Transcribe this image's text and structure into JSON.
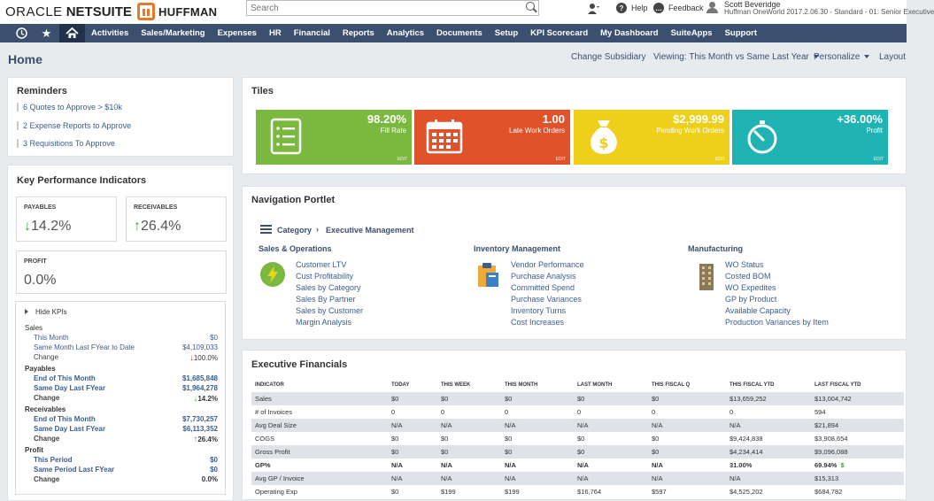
{
  "brand": {
    "oracle": "ORACLE",
    "netsuite": "NETSUITE",
    "company": "HUFFMAN"
  },
  "search": {
    "placeholder": "Search"
  },
  "topbar": {
    "help": "Help",
    "feedback": "Feedback",
    "user_name": "Scott Beveridge",
    "user_role": "Huffman OneWorld 2017.2.06.30 - Standard - 01: Senior Executive"
  },
  "nav": {
    "items": [
      "Activities",
      "Sales/Marketing",
      "Expenses",
      "HR",
      "Financial",
      "Reports",
      "Analytics",
      "Documents",
      "Setup",
      "KPI Scorecard",
      "My Dashboard",
      "SuiteApps",
      "Support"
    ]
  },
  "page": {
    "title": "Home",
    "change_subsidiary": "Change Subsidiary",
    "viewing": "Viewing: This Month vs Same Last Year",
    "personalize": "Personalize",
    "layout": "Layout"
  },
  "reminders": {
    "title": "Reminders",
    "items": [
      "6  Quotes to Approve > $10k",
      "2  Expense Reports to Approve",
      "3  Requisitions To Approve"
    ]
  },
  "kpi": {
    "title": "Key Performance Indicators",
    "payables": {
      "label": "PAYABLES",
      "value": "14.2%",
      "arrow": "↓"
    },
    "receivables": {
      "label": "RECEIVABLES",
      "value": "26.4%",
      "arrow": "↑"
    },
    "profit": {
      "label": "PROFIT",
      "value": "0.0%"
    },
    "hide": "Hide KPIs",
    "rows": [
      {
        "label": "Sales",
        "value": "",
        "style": "head-plain"
      },
      {
        "label": "This Month",
        "value": "$0",
        "style": "sub"
      },
      {
        "label": "Same Month Last FYear to Date",
        "value": "$4,109,033",
        "style": "sub"
      },
      {
        "label": "Change",
        "value": "100.0%",
        "arrow": "↓",
        "arrow_color": "#d23a2a",
        "style": "sub-plain"
      },
      {
        "label": "Payables",
        "value": "",
        "style": "head"
      },
      {
        "label": "End of This Month",
        "value": "$1,685,848",
        "style": "subbold"
      },
      {
        "label": "Same Day Last FYear",
        "value": "$1,964,278",
        "style": "subbold"
      },
      {
        "label": "Change",
        "value": "14.2%",
        "arrow": "↓",
        "arrow_color": "#4a9a3b",
        "style": "subbold-plain"
      },
      {
        "label": "Receivables",
        "value": "",
        "style": "head"
      },
      {
        "label": "End of This Month",
        "value": "$7,730,257",
        "style": "subbold"
      },
      {
        "label": "Same Day Last FYear",
        "value": "$6,113,352",
        "style": "subbold"
      },
      {
        "label": "Change",
        "value": "26.4%",
        "arrow": "↑",
        "arrow_color": "#4a9a3b",
        "style": "subbold-plain"
      },
      {
        "label": "Profit",
        "value": "",
        "style": "head"
      },
      {
        "label": "This Period",
        "value": "$0",
        "style": "subbold"
      },
      {
        "label": "Same Period Last FYear",
        "value": "$0",
        "style": "subbold"
      },
      {
        "label": "Change",
        "value": "0.0%",
        "style": "subbold-plain"
      }
    ]
  },
  "tiles": {
    "title": "Tiles",
    "items": [
      {
        "value": "98.20%",
        "label": "Fill Rate",
        "edit": "EDIT",
        "color": "#7ab83f",
        "icon": "list-icon"
      },
      {
        "value": "1.00",
        "label": "Late Work Orders",
        "edit": "EDIT",
        "color": "#e0522a",
        "icon": "calendar-icon"
      },
      {
        "value": "$2,999.99",
        "label": "Pending Work Orders",
        "edit": "EDIT",
        "color": "#eecf1a",
        "icon": "money-bag-icon"
      },
      {
        "value": "+36.00%",
        "label": "Profit",
        "edit": "EDIT",
        "color": "#1fb3b3",
        "icon": "stopwatch-icon"
      }
    ]
  },
  "navportlet": {
    "title": "Navigation Portlet",
    "category": "Category",
    "subcategory": "Executive Management",
    "columns": [
      {
        "head": "Sales & Operations",
        "icon": "bolt-icon",
        "links": [
          "Customer LTV",
          "Cust Profitability",
          "Sales by Category",
          "Sales By Partner",
          "Sales by Customer",
          "Margin Analysis"
        ]
      },
      {
        "head": "Inventory Management",
        "icon": "clipboard-icon",
        "links": [
          "Vendor Performance",
          "Purchase Analysis",
          "Committed Spend",
          "Purchase Variances",
          "Inventory Turns",
          "Cost Increases"
        ]
      },
      {
        "head": "Manufacturing",
        "icon": "building-icon",
        "links": [
          "WO Status",
          "Costed BOM",
          "WO Expedites",
          "GP by Product",
          "Available Capacity",
          "Production Variances by Item"
        ]
      }
    ]
  },
  "financials": {
    "title": "Executive Financials",
    "headers": [
      "INDICATOR",
      "TODAY",
      "THIS WEEK",
      "THIS MONTH",
      "LAST MONTH",
      "THIS FISCAL Q",
      "THIS FISCAL YTD",
      "LAST FISCAL YTD"
    ],
    "rows": [
      {
        "cells": [
          "Sales",
          "$0",
          "$0",
          "$0",
          "$0",
          "$0",
          "$13,659,252",
          "$13,004,742"
        ]
      },
      {
        "cells": [
          "# of Invoices",
          "0",
          "0",
          "0",
          "0",
          "0",
          "0",
          "594"
        ]
      },
      {
        "cells": [
          "Avg Deal Size",
          "N/A",
          "N/A",
          "N/A",
          "N/A",
          "N/A",
          "N/A",
          "$21,894"
        ]
      },
      {
        "cells": [
          "COGS",
          "$0",
          "$0",
          "$0",
          "$0",
          "$0",
          "$9,424,838",
          "$3,908,654"
        ]
      },
      {
        "cells": [
          "Gross Profit",
          "$0",
          "$0",
          "$0",
          "$0",
          "$0",
          "$4,234,414",
          "$9,096,088"
        ]
      },
      {
        "cells": [
          "GP%",
          "N/A",
          "N/A",
          "N/A",
          "N/A",
          "N/A",
          "31.00%",
          "69.94%"
        ]
      },
      {
        "cells": [
          "Avg GP / Invoice",
          "N/A",
          "N/A",
          "N/A",
          "N/A",
          "N/A",
          "N/A",
          "$15,313"
        ]
      },
      {
        "cells": [
          "Operating Exp",
          "$0",
          "$199",
          "$199",
          "$16,764",
          "$597",
          "$4,525,202",
          "$684,782"
        ]
      }
    ],
    "gp_badge": "$"
  }
}
